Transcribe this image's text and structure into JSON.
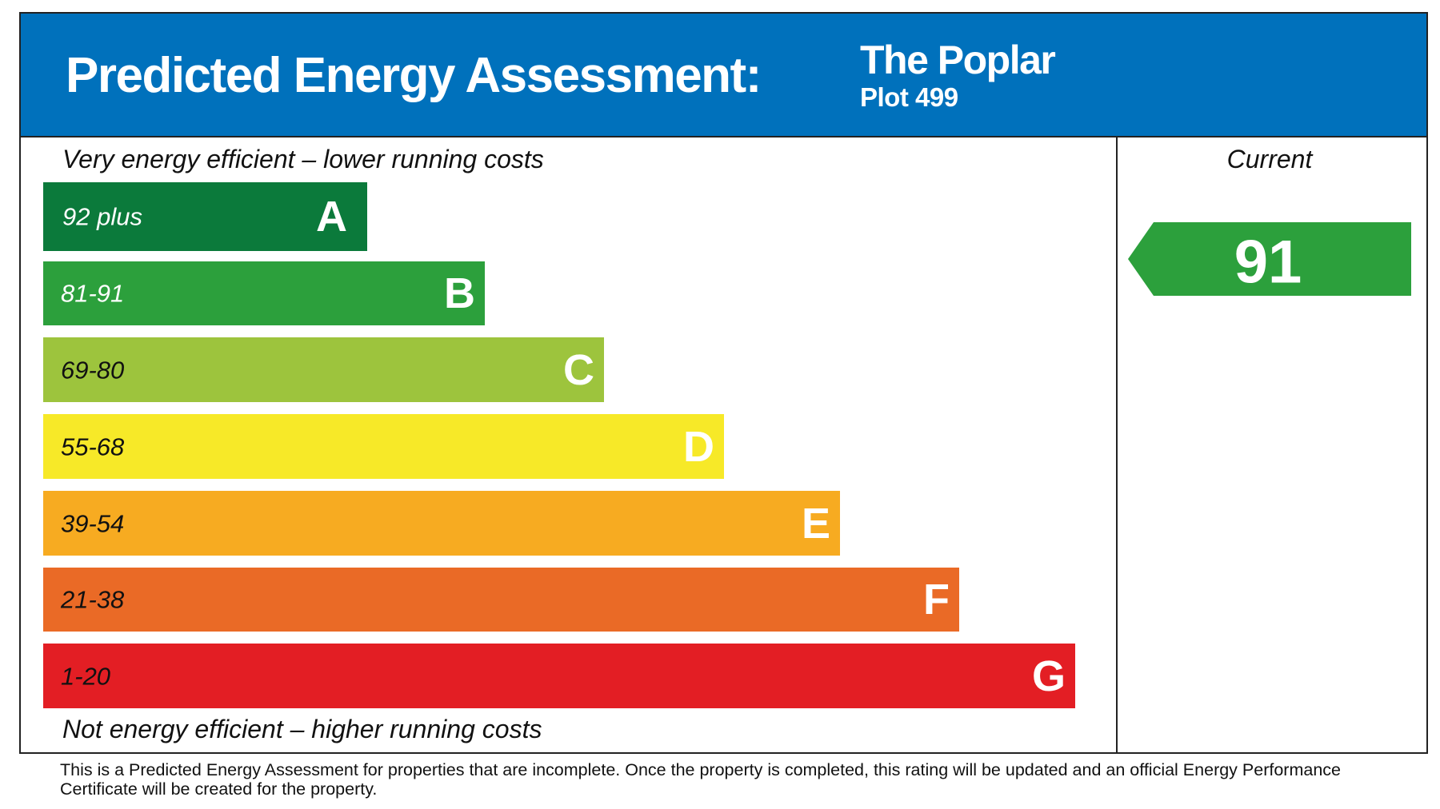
{
  "header": {
    "title": "Predicted Energy Assessment:",
    "property_name": "The Poplar",
    "plot": "Plot 499"
  },
  "scale": {
    "top_note": "Very energy efficient – lower running costs",
    "bottom_note": "Not energy efficient – higher running costs",
    "bands": [
      {
        "range": "92 plus",
        "letter": "A"
      },
      {
        "range": "81-91",
        "letter": "B"
      },
      {
        "range": "69-80",
        "letter": "C"
      },
      {
        "range": "55-68",
        "letter": "D"
      },
      {
        "range": "39-54",
        "letter": "E"
      },
      {
        "range": "21-38",
        "letter": "F"
      },
      {
        "range": "1-20",
        "letter": "G"
      }
    ]
  },
  "current": {
    "label": "Current",
    "rating": 91
  },
  "footer": "This is a Predicted Energy Assessment for properties that are incomplete. Once the property is completed, this rating will be updated and an official Energy Performance Certificate will be created for the property."
}
